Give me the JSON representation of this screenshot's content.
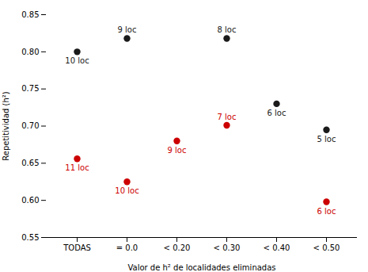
{
  "chart_data": {
    "type": "scatter",
    "xlabel": "Valor de h² de localidades eliminadas",
    "ylabel": "Repetitividad (h²)",
    "categories": [
      "TODAS",
      "= 0.0",
      "< 0.20",
      "< 0.30",
      "< 0.40",
      "< 0.50"
    ],
    "series": [
      {
        "color": "#1a1a1a",
        "marker": "circle",
        "values": [
          0.8,
          0.818,
          null,
          0.818,
          0.73,
          0.695
        ],
        "labels": [
          "10 loc",
          "9 loc",
          null,
          "8 loc",
          "6 loc",
          "5 loc"
        ]
      },
      {
        "color": "#cc0000",
        "marker": "circle",
        "values": [
          0.656,
          0.625,
          0.68,
          0.701,
          null,
          0.598
        ],
        "labels": [
          "11 loc",
          "10 loc",
          "9 loc",
          "7 loc",
          null,
          "6 loc"
        ]
      }
    ],
    "ylim": [
      0.55,
      0.85
    ],
    "yticks": [
      0.55,
      {
        "value": 0.6,
        "label": "0.60"
      },
      0.65,
      {
        "value": 0.7,
        "label": "0.70"
      },
      0.75,
      {
        "value": 0.8,
        "label": "0.80"
      },
      0.85
    ],
    "grid": false
  }
}
